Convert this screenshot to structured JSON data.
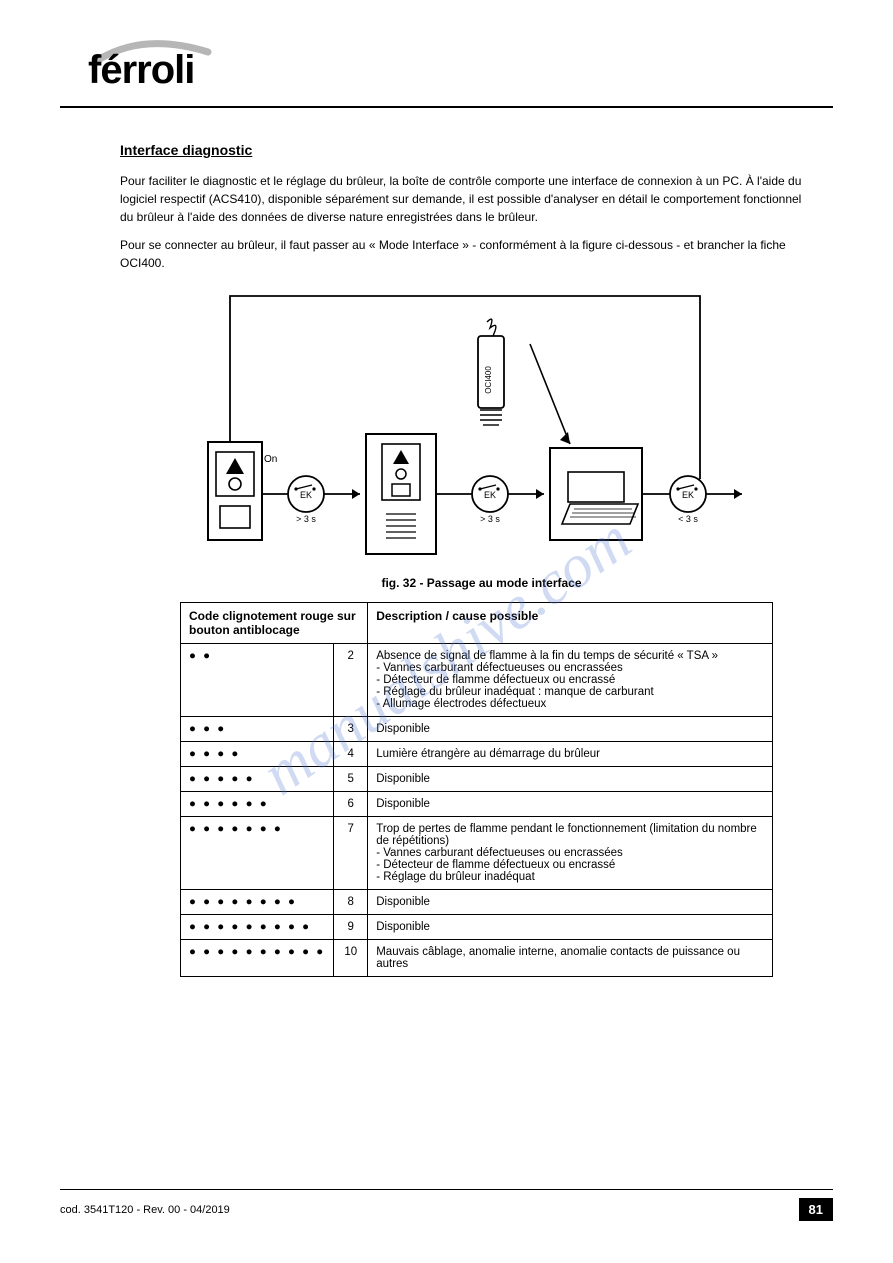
{
  "logo_text": "férroli",
  "section_title": "Interface diagnostic",
  "para1": "Pour faciliter le diagnostic et le réglage du brûleur, la boîte de contrôle comporte une interface de connexion à un PC. À l'aide du logiciel respectif (ACS410), disponible séparément sur demande, il est possible d'analyser en détail le comportement fonctionnel du brûleur à l'aide des données de diverse nature enregistrées dans le brûleur.",
  "para2": "Pour se connecter au brûleur, il faut passer au « Mode Interface » - conformément à la figure ci-dessous - et brancher la fiche OCI400.",
  "fig_label": "fig. 32 - Passage au mode interface",
  "diagram": {
    "oci_label": "OCI400",
    "on_label": "On",
    "ek": "EK",
    "gt3": "> 3 s",
    "lt3": "< 3 s"
  },
  "table": {
    "header_left": "Code clignotement rouge sur bouton antiblocage",
    "header_right": "Description / cause possible",
    "rows": [
      {
        "dots": "● ●",
        "value": "2",
        "desc": "Absence de signal de flamme à la fin du temps de sécurité « TSA »\n- Vannes carburant défectueuses ou encrassées\n- Détecteur de flamme défectueux ou encrassé\n- Réglage du brûleur inadéquat : manque de carburant\n- Allumage électrodes défectueux"
      },
      {
        "dots": "● ● ●",
        "value": "3",
        "desc": "Disponible"
      },
      {
        "dots": "● ● ● ●",
        "value": "4",
        "desc": "Lumière étrangère au démarrage du brûleur"
      },
      {
        "dots": "● ● ● ● ●",
        "value": "5",
        "desc": "Disponible"
      },
      {
        "dots": "● ● ● ● ● ●",
        "value": "6",
        "desc": "Disponible"
      },
      {
        "dots": "● ● ● ● ● ● ●",
        "value": "7",
        "desc": "Trop de pertes de flamme pendant le fonctionnement (limitation du nombre de répétitions)\n- Vannes carburant défectueuses ou encrassées\n- Détecteur de flamme défectueux ou encrassé\n- Réglage du brûleur inadéquat"
      },
      {
        "dots": "● ● ● ● ● ● ● ●",
        "value": "8",
        "desc": "Disponible"
      },
      {
        "dots": "● ● ● ● ● ● ● ● ●",
        "value": "9",
        "desc": "Disponible"
      },
      {
        "dots": "● ● ● ● ● ● ● ● ● ●",
        "value": "10",
        "desc": "Mauvais câblage, anomalie interne, anomalie contacts de puissance ou autres"
      }
    ]
  },
  "footer": {
    "left": "cod. 3541T120  -  Rev. 00  -  04/2019",
    "page": "81"
  },
  "watermark": "manualshive.com",
  "colors": {
    "watermark": "#5b7fd6",
    "line": "#000000",
    "bg": "#ffffff"
  }
}
